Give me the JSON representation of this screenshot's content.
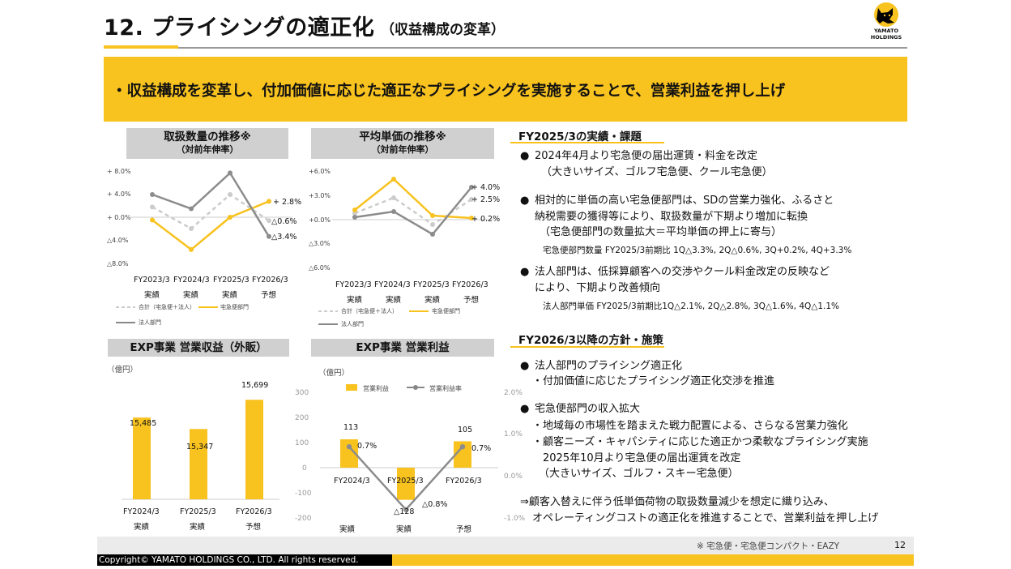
{
  "slide": {
    "title": "12. プライシングの適正化",
    "subtitle": "（収益構成の変革）",
    "banner": "・収益構成を変革し、付加価値に応じた適正なプライシングを実施することで、営業利益を押し上げ",
    "footnote": "※ 宅急便・宅急便コンパクト・EAZY",
    "page_number": "12",
    "copyright": "Copyright© YAMATO HOLDINGS CO., LTD. All rights reserved."
  },
  "logo": {
    "text1": "YAMATO",
    "text2": "HOLDINGS",
    "icon": "black-cat-icon",
    "colors": {
      "accent": "#f8c21f",
      "dark": "#000000"
    }
  },
  "vol": {
    "title1": "取扱数量の推移※",
    "title2": "（対前年伸率）",
    "y_ticks": [
      "+ 8.0%",
      "+ 4.0%",
      "+ 0.0%",
      "△4.0%",
      "△8.0%"
    ],
    "x1": [
      "FY2023/3",
      "FY2024/3",
      "FY2025/3",
      "FY2026/3"
    ],
    "x2": [
      "実績",
      "実績",
      "実績",
      "予想"
    ],
    "end_labels": [
      "+ 2.8%",
      "△0.6%",
      "△3.4%"
    ],
    "legend": [
      "合計（宅急便＋法人）",
      "宅急便部門",
      "法人部門"
    ]
  },
  "price": {
    "title1": "平均単価の推移※",
    "title2": "（対前年伸率）",
    "y_ticks": [
      "+6.0%",
      "+3.0%",
      "+0.0%",
      "△3.0%",
      "△6.0%"
    ],
    "x1": [
      "FY2023/3",
      "FY2024/3",
      "FY2025/3",
      "FY2026/3"
    ],
    "x2": [
      "実績",
      "実績",
      "実績",
      "予想"
    ],
    "end_labels": [
      "+ 4.0%",
      "+ 2.5%",
      "+ 0.2%"
    ],
    "legend": [
      "合計（宅急便＋法人）",
      "宅急便部門",
      "法人部門"
    ]
  },
  "rev": {
    "title": "EXP事業 営業収益（外販）",
    "unit": "（億円）",
    "categories": [
      "FY2024/3",
      "FY2025/3",
      "FY2026/3"
    ],
    "x2": [
      "実績",
      "実績",
      "予想"
    ],
    "labels": [
      "15,485",
      "15,347",
      "15,699"
    ]
  },
  "op": {
    "title": "EXP事業 営業利益",
    "unit": "（億円）",
    "legend": [
      "営業利益",
      "営業利益率"
    ],
    "y_left": [
      "300",
      "200",
      "100",
      "0",
      "-100",
      "-200"
    ],
    "y_right": [
      "2.0%",
      "1.0%",
      "0.0%",
      "-1.0%"
    ],
    "categories": [
      "FY2024/3",
      "FY2025/3",
      "FY2026/3"
    ],
    "x2": [
      "実績",
      "実績",
      "予想"
    ],
    "bar_labels": [
      "113",
      "△128",
      "105"
    ],
    "rate_labels": [
      "0.7%",
      "△0.8%",
      "0.7%"
    ]
  },
  "right": {
    "sec1": "FY2025/3の実績・課題",
    "b1": [
      "2024年4月より宅急便の届出運賃・料金を改定",
      "（大きいサイズ、ゴルフ宅急便、クール宅急便）"
    ],
    "b2": [
      "相対的に単価の高い宅急便部門は、SDの営業力強化、ふるさと",
      "納税需要の獲得等により、取扱数量が下期より増加に転換",
      "（宅急便部門の数量拡大＝平均単価の押上に寄与）",
      "宅急便部門数量 FY2025/3前期比 1Q△3.3%, 2Q△0.6%, 3Q+0.2%, 4Q+3.3%"
    ],
    "b3": [
      "法人部門は、低採算顧客への交渉やクール料金改定の反映など",
      "により、下期より改善傾向",
      "法人部門単価 FY2025/3前期比1Q△2.1%, 2Q△2.8%, 3Q△1.6%, 4Q△1.1%"
    ],
    "sec2": "FY2026/3以降の方針・施策",
    "b4": [
      "法人部門のプライシング適正化",
      "・付加価値に応じたプライシング適正化交渉を推進"
    ],
    "b5": [
      "宅急便部門の収入拡大",
      "・地域毎の市場性を踏まえた戦力配置による、さらなる営業力強化",
      "・顧客ニーズ・キャパシティに応じた適正かつ柔軟なプライシング実施",
      "2025年10月より宅急便の届出運賃を改定",
      "（大きいサイズ、ゴルフ・スキー宅急便）"
    ],
    "concl": [
      "⇒顧客入替えに伴う低単価荷物の取扱数量減少を想定に織り込み、",
      "オペレーティングコストの適正化を推進することで、営業利益を押し上げ"
    ]
  },
  "chart_data": [
    {
      "type": "line",
      "title": "取扱数量の推移※（対前年伸率）",
      "categories": [
        "FY2023/3",
        "FY2024/3",
        "FY2025/3",
        "FY2026/3"
      ],
      "ylim": [
        -8,
        8
      ],
      "series": [
        {
          "name": "合計（宅急便＋法人）",
          "values": [
            1.8,
            -2.0,
            4.0,
            -0.6
          ]
        },
        {
          "name": "宅急便部門",
          "values": [
            -0.5,
            -5.7,
            0.0,
            2.8
          ]
        },
        {
          "name": "法人部門",
          "values": [
            4.0,
            1.5,
            7.8,
            -3.4
          ]
        }
      ]
    },
    {
      "type": "line",
      "title": "平均単価の推移※（対前年伸率）",
      "categories": [
        "FY2023/3",
        "FY2024/3",
        "FY2025/3",
        "FY2026/3"
      ],
      "ylim": [
        -6,
        6
      ],
      "series": [
        {
          "name": "合計（宅急便＋法人）",
          "values": [
            0.8,
            2.7,
            -0.6,
            2.5
          ]
        },
        {
          "name": "宅急便部門",
          "values": [
            1.2,
            5.0,
            0.5,
            0.2
          ]
        },
        {
          "name": "法人部門",
          "values": [
            0.3,
            1.0,
            -1.8,
            4.0
          ]
        }
      ]
    },
    {
      "type": "bar",
      "title": "EXP事業 営業収益（外販）",
      "categories": [
        "FY2024/3",
        "FY2025/3",
        "FY2026/3"
      ],
      "values": [
        15485,
        15347,
        15699
      ]
    },
    {
      "type": "bar",
      "title": "EXP事業 営業利益",
      "categories": [
        "FY2024/3",
        "FY2025/3",
        "FY2026/3"
      ],
      "ylim": [
        -200,
        300
      ],
      "series": [
        {
          "name": "営業利益",
          "values": [
            113,
            -128,
            105
          ]
        },
        {
          "name": "営業利益率",
          "values": [
            0.7,
            -0.8,
            0.7
          ]
        }
      ]
    }
  ]
}
